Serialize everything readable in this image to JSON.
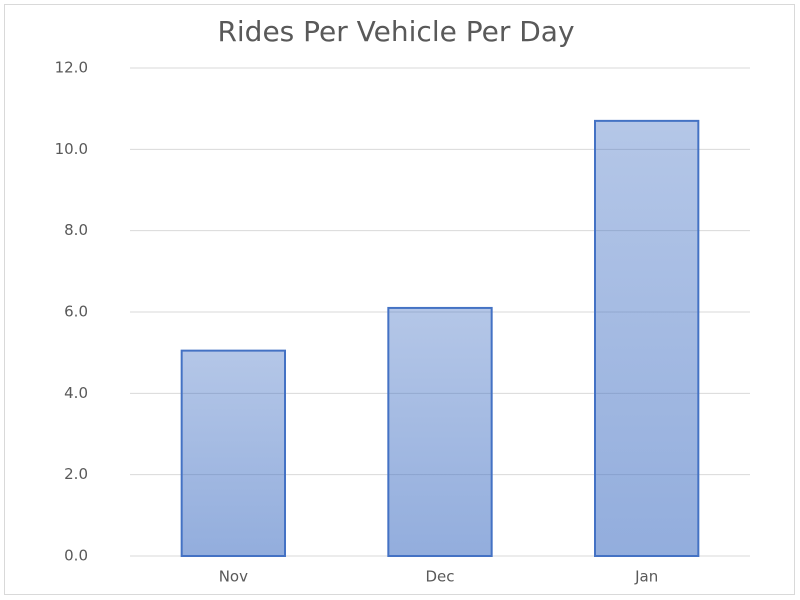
{
  "chart_data": {
    "type": "bar",
    "title": "Rides Per Vehicle Per Day",
    "categories": [
      "Nov",
      "Dec",
      "Jan"
    ],
    "values": [
      5.05,
      6.1,
      10.7
    ],
    "color": "#4472c4",
    "ylim": [
      0,
      12
    ],
    "yticks": [
      {
        "value": 0,
        "label": "0.0"
      },
      {
        "value": 2,
        "label": "2.0"
      },
      {
        "value": 4,
        "label": "4.0"
      },
      {
        "value": 6,
        "label": "6.0"
      },
      {
        "value": 8,
        "label": "8.0"
      },
      {
        "value": 10,
        "label": "10.0"
      },
      {
        "value": 12,
        "label": "12.0"
      }
    ],
    "grid": true
  }
}
